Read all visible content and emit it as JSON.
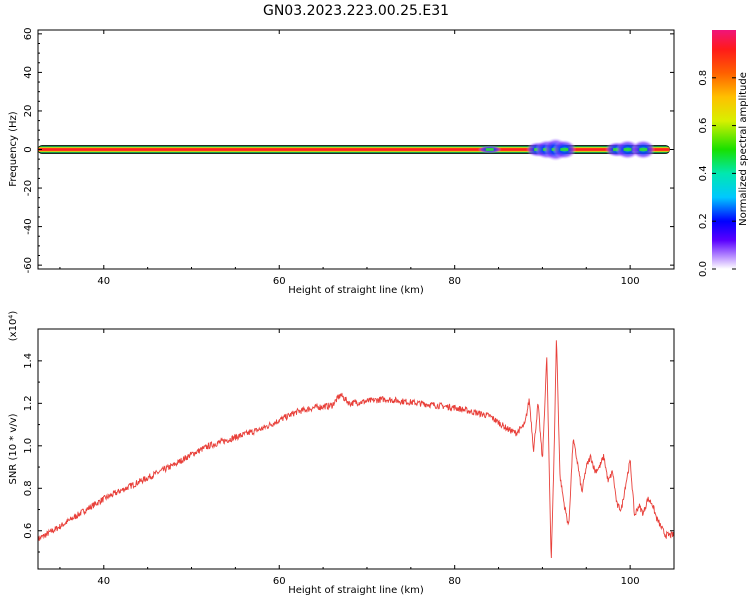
{
  "figure": {
    "title": "GN03.2023.223.00.25.E31"
  },
  "colors": {
    "snr_line": "#e8403a",
    "frame": "#000000",
    "band_core": "#ff2020"
  },
  "chart_data": [
    {
      "type": "heatmap",
      "xlabel": "Height of straight line (km)",
      "ylabel": "Frequency (Hz)",
      "xlim": [
        32.5,
        105
      ],
      "ylim": [
        -62,
        62
      ],
      "xticks": [
        "40",
        "60",
        "80",
        "100"
      ],
      "yticks": [
        "-60",
        "-40",
        "-20",
        "0",
        "20",
        "40",
        "60"
      ],
      "colorbar": {
        "label": "Normalized spectral amplitude",
        "range": [
          0,
          1
        ],
        "ticks": [
          "0.0",
          "0.2",
          "0.4",
          "0.6",
          "0.8"
        ]
      },
      "band_center_hz": 0,
      "spread_blobs": [
        {
          "x_km": 84.0,
          "spread_hz": 2,
          "amplitude": 0.3
        },
        {
          "x_km": 89.5,
          "spread_hz": 4,
          "amplitude": 0.3
        },
        {
          "x_km": 90.5,
          "spread_hz": 5,
          "amplitude": 0.2
        },
        {
          "x_km": 91.5,
          "spread_hz": 6,
          "amplitude": 0.15
        },
        {
          "x_km": 92.5,
          "spread_hz": 5,
          "amplitude": 0.2
        },
        {
          "x_km": 98.5,
          "spread_hz": 4,
          "amplitude": 0.2
        },
        {
          "x_km": 99.7,
          "spread_hz": 5,
          "amplitude": 0.15
        },
        {
          "x_km": 101.5,
          "spread_hz": 5,
          "amplitude": 0.15
        }
      ]
    },
    {
      "type": "line",
      "xlabel": "Height of straight line (km)",
      "ylabel": "SNR (10 * v/v)",
      "yunit": "(x10⁴)",
      "xlim": [
        32.5,
        105
      ],
      "ylim": [
        0.42,
        1.55
      ],
      "xticks": [
        "40",
        "60",
        "80",
        "100"
      ],
      "yticks": [
        "0.6",
        "0.8",
        "1.0",
        "1.2",
        "1.4"
      ],
      "x": [
        32.5,
        35,
        38,
        40,
        42,
        45,
        48,
        50,
        52,
        55,
        58,
        60,
        62,
        64,
        66,
        67,
        68,
        70,
        72,
        74,
        76,
        78,
        80,
        82,
        84,
        85,
        86,
        87,
        88,
        88.5,
        89,
        89.5,
        90,
        90.5,
        91,
        91.3,
        91.6,
        92,
        92.5,
        93,
        93.5,
        94,
        94.5,
        95,
        95.5,
        96,
        96.5,
        97,
        97.5,
        98,
        98.5,
        99,
        99.5,
        100,
        100.5,
        101,
        101.5,
        102,
        102.5,
        103,
        103.5,
        104,
        105
      ],
      "y": [
        0.56,
        0.62,
        0.7,
        0.75,
        0.79,
        0.85,
        0.91,
        0.96,
        1.0,
        1.04,
        1.08,
        1.12,
        1.16,
        1.18,
        1.19,
        1.24,
        1.2,
        1.21,
        1.22,
        1.21,
        1.2,
        1.19,
        1.18,
        1.16,
        1.14,
        1.11,
        1.08,
        1.06,
        1.1,
        1.22,
        0.98,
        1.2,
        0.93,
        1.42,
        0.46,
        0.9,
        1.52,
        0.86,
        0.72,
        0.62,
        1.03,
        0.92,
        0.78,
        0.9,
        0.95,
        0.88,
        0.9,
        0.95,
        0.83,
        0.88,
        0.72,
        0.7,
        0.82,
        0.93,
        0.67,
        0.72,
        0.68,
        0.75,
        0.73,
        0.66,
        0.62,
        0.58,
        0.58
      ]
    }
  ]
}
